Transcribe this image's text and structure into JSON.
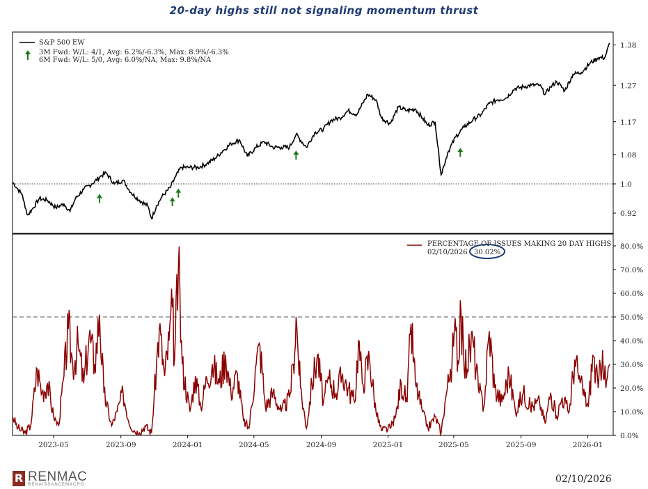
{
  "title": "20-day highs still not signaling momentum thrust",
  "footer_date": "02/10/2026",
  "logo": {
    "mark": "R",
    "name": "RENMAC",
    "sub": "RENAISSANCEMACRO"
  },
  "colors": {
    "price_line": "#000000",
    "breadth_line": "#8b0000",
    "arrow": "#1a7a1a",
    "title": "#1f3b73",
    "callout": "#1f3b73"
  },
  "chart_data": [
    {
      "type": "line",
      "panel": "top",
      "series": [
        {
          "name": "S&P 500 EW"
        }
      ],
      "x_ticks": [
        "2023-05",
        "2023-09",
        "2024-01",
        "2024-05",
        "2024-09",
        "2025-01",
        "2025-05",
        "2025-09",
        "2026-01"
      ],
      "y_ticks": [
        "0.92",
        "1.0",
        "1.08",
        "1.17",
        "1.27",
        "1.38"
      ],
      "y_tick_values": [
        0.92,
        1.0,
        1.08,
        1.17,
        1.27,
        1.38
      ],
      "ylim": [
        0.88,
        1.4
      ],
      "x_range": [
        "2023-02-15",
        "2026-02-10"
      ],
      "reference_line": 1.0,
      "annotations": [
        "3M Fwd: W/L: 4/1, Avg: 6.2%/-6.3%, Max: 8.9%/-6.3%",
        "6M Fwd: W/L: 5/0, Avg: 6.0%/NA, Max: 9.8%/NA"
      ],
      "legend_position": "top-left",
      "signal_dates": [
        "2023-07-24",
        "2023-12-04",
        "2023-12-15",
        "2024-07-17",
        "2025-05-13"
      ],
      "points": [
        [
          "2023-02-15",
          1.005
        ],
        [
          "2023-02-25",
          0.985
        ],
        [
          "2023-03-05",
          0.97
        ],
        [
          "2023-03-10",
          0.935
        ],
        [
          "2023-03-15",
          0.915
        ],
        [
          "2023-03-25",
          0.935
        ],
        [
          "2023-04-05",
          0.96
        ],
        [
          "2023-04-20",
          0.955
        ],
        [
          "2023-05-05",
          0.935
        ],
        [
          "2023-05-20",
          0.945
        ],
        [
          "2023-05-31",
          0.925
        ],
        [
          "2023-06-10",
          0.96
        ],
        [
          "2023-06-25",
          0.985
        ],
        [
          "2023-07-10",
          1.0
        ],
        [
          "2023-07-25",
          1.02
        ],
        [
          "2023-08-05",
          1.03
        ],
        [
          "2023-08-20",
          1.0
        ],
        [
          "2023-09-05",
          1.01
        ],
        [
          "2023-09-20",
          0.975
        ],
        [
          "2023-10-05",
          0.955
        ],
        [
          "2023-10-20",
          0.94
        ],
        [
          "2023-10-27",
          0.905
        ],
        [
          "2023-11-05",
          0.94
        ],
        [
          "2023-11-15",
          0.965
        ],
        [
          "2023-11-30",
          0.99
        ],
        [
          "2023-12-10",
          1.02
        ],
        [
          "2023-12-20",
          1.045
        ],
        [
          "2024-01-05",
          1.045
        ],
        [
          "2024-01-20",
          1.045
        ],
        [
          "2024-02-05",
          1.055
        ],
        [
          "2024-02-20",
          1.07
        ],
        [
          "2024-03-05",
          1.09
        ],
        [
          "2024-03-20",
          1.11
        ],
        [
          "2024-04-05",
          1.12
        ],
        [
          "2024-04-19",
          1.075
        ],
        [
          "2024-05-05",
          1.1
        ],
        [
          "2024-05-20",
          1.115
        ],
        [
          "2024-06-05",
          1.1
        ],
        [
          "2024-06-20",
          1.1
        ],
        [
          "2024-07-05",
          1.1
        ],
        [
          "2024-07-17",
          1.135
        ],
        [
          "2024-08-05",
          1.1
        ],
        [
          "2024-08-20",
          1.14
        ],
        [
          "2024-09-05",
          1.15
        ],
        [
          "2024-09-20",
          1.175
        ],
        [
          "2024-10-05",
          1.18
        ],
        [
          "2024-10-20",
          1.2
        ],
        [
          "2024-11-05",
          1.19
        ],
        [
          "2024-11-25",
          1.245
        ],
        [
          "2024-12-10",
          1.23
        ],
        [
          "2024-12-20",
          1.18
        ],
        [
          "2025-01-05",
          1.165
        ],
        [
          "2025-01-20",
          1.21
        ],
        [
          "2025-02-05",
          1.2
        ],
        [
          "2025-02-20",
          1.205
        ],
        [
          "2025-03-05",
          1.18
        ],
        [
          "2025-03-15",
          1.16
        ],
        [
          "2025-03-28",
          1.17
        ],
        [
          "2025-04-08",
          1.025
        ],
        [
          "2025-04-20",
          1.085
        ],
        [
          "2025-05-05",
          1.13
        ],
        [
          "2025-05-20",
          1.155
        ],
        [
          "2025-06-05",
          1.175
        ],
        [
          "2025-06-20",
          1.19
        ],
        [
          "2025-07-05",
          1.22
        ],
        [
          "2025-07-20",
          1.23
        ],
        [
          "2025-08-05",
          1.235
        ],
        [
          "2025-08-20",
          1.26
        ],
        [
          "2025-09-05",
          1.265
        ],
        [
          "2025-09-20",
          1.27
        ],
        [
          "2025-10-05",
          1.27
        ],
        [
          "2025-10-15",
          1.245
        ],
        [
          "2025-10-25",
          1.265
        ],
        [
          "2025-11-05",
          1.28
        ],
        [
          "2025-11-20",
          1.255
        ],
        [
          "2025-12-05",
          1.3
        ],
        [
          "2025-12-20",
          1.305
        ],
        [
          "2026-01-05",
          1.33
        ],
        [
          "2026-01-20",
          1.345
        ],
        [
          "2026-02-01",
          1.345
        ],
        [
          "2026-02-10",
          1.385
        ]
      ]
    },
    {
      "type": "line",
      "panel": "bottom",
      "series": [
        {
          "name": "PERCENTAGE OF ISSUES MAKING 20 DAY HIGHS",
          "last_value": "30.02%"
        }
      ],
      "legend_date": "02/10/2026",
      "x_ticks": [
        "2023-05",
        "2023-09",
        "2024-01",
        "2024-05",
        "2024-09",
        "2025-01",
        "2025-05",
        "2025-09",
        "2026-01"
      ],
      "y_ticks": [
        "0.0%",
        "10.0%",
        "20.0%",
        "30.0%",
        "40.0%",
        "50.0%",
        "60.0%",
        "70.0%",
        "80.0%"
      ],
      "y_tick_values": [
        0,
        10,
        20,
        30,
        40,
        50,
        60,
        70,
        80
      ],
      "ylim": [
        0,
        85
      ],
      "reference_line": 50,
      "legend_position": "top-right",
      "points": [
        [
          "2023-02-15",
          8
        ],
        [
          "2023-02-25",
          3
        ],
        [
          "2023-03-10",
          1
        ],
        [
          "2023-03-20",
          4
        ],
        [
          "2023-04-01",
          28
        ],
        [
          "2023-04-10",
          18
        ],
        [
          "2023-04-20",
          22
        ],
        [
          "2023-05-01",
          8
        ],
        [
          "2023-05-10",
          4
        ],
        [
          "2023-05-20",
          25
        ],
        [
          "2023-05-28",
          45
        ],
        [
          "2023-06-05",
          30
        ],
        [
          "2023-06-15",
          38
        ],
        [
          "2023-06-25",
          22
        ],
        [
          "2023-07-05",
          42
        ],
        [
          "2023-07-15",
          30
        ],
        [
          "2023-07-24",
          51
        ],
        [
          "2023-08-01",
          18
        ],
        [
          "2023-08-15",
          4
        ],
        [
          "2023-08-25",
          10
        ],
        [
          "2023-09-05",
          18
        ],
        [
          "2023-09-15",
          6
        ],
        [
          "2023-09-25",
          2
        ],
        [
          "2023-10-05",
          1
        ],
        [
          "2023-10-15",
          4
        ],
        [
          "2023-10-27",
          1
        ],
        [
          "2023-11-05",
          30
        ],
        [
          "2023-11-10",
          45
        ],
        [
          "2023-11-20",
          25
        ],
        [
          "2023-11-28",
          40
        ],
        [
          "2023-12-04",
          54
        ],
        [
          "2023-12-08",
          32
        ],
        [
          "2023-12-15",
          71
        ],
        [
          "2023-12-22",
          30
        ],
        [
          "2024-01-05",
          10
        ],
        [
          "2024-01-15",
          25
        ],
        [
          "2024-01-25",
          12
        ],
        [
          "2024-02-05",
          24
        ],
        [
          "2024-02-15",
          30
        ],
        [
          "2024-02-28",
          22
        ],
        [
          "2024-03-10",
          34
        ],
        [
          "2024-03-20",
          18
        ],
        [
          "2024-04-01",
          26
        ],
        [
          "2024-04-12",
          6
        ],
        [
          "2024-04-22",
          3
        ],
        [
          "2024-05-05",
          30
        ],
        [
          "2024-05-12",
          38
        ],
        [
          "2024-05-22",
          12
        ],
        [
          "2024-06-05",
          18
        ],
        [
          "2024-06-20",
          10
        ],
        [
          "2024-07-05",
          16
        ],
        [
          "2024-07-12",
          30
        ],
        [
          "2024-07-17",
          50
        ],
        [
          "2024-07-25",
          20
        ],
        [
          "2024-08-05",
          3
        ],
        [
          "2024-08-15",
          22
        ],
        [
          "2024-08-25",
          34
        ],
        [
          "2024-09-05",
          14
        ],
        [
          "2024-09-15",
          24
        ],
        [
          "2024-09-28",
          18
        ],
        [
          "2024-10-10",
          26
        ],
        [
          "2024-10-20",
          20
        ],
        [
          "2024-11-01",
          14
        ],
        [
          "2024-11-08",
          40
        ],
        [
          "2024-11-15",
          22
        ],
        [
          "2024-11-28",
          33
        ],
        [
          "2024-12-10",
          10
        ],
        [
          "2024-12-20",
          2
        ],
        [
          "2025-01-05",
          3
        ],
        [
          "2025-01-15",
          8
        ],
        [
          "2025-01-25",
          22
        ],
        [
          "2025-02-05",
          14
        ],
        [
          "2025-02-12",
          47
        ],
        [
          "2025-02-20",
          22
        ],
        [
          "2025-03-05",
          10
        ],
        [
          "2025-03-15",
          3
        ],
        [
          "2025-03-28",
          8
        ],
        [
          "2025-04-08",
          1
        ],
        [
          "2025-04-15",
          14
        ],
        [
          "2025-04-25",
          28
        ],
        [
          "2025-05-05",
          44
        ],
        [
          "2025-05-10",
          30
        ],
        [
          "2025-05-13",
          57
        ],
        [
          "2025-05-20",
          28
        ],
        [
          "2025-06-05",
          40
        ],
        [
          "2025-06-15",
          20
        ],
        [
          "2025-06-25",
          12
        ],
        [
          "2025-07-05",
          44
        ],
        [
          "2025-07-15",
          20
        ],
        [
          "2025-07-28",
          14
        ],
        [
          "2025-08-10",
          26
        ],
        [
          "2025-08-22",
          10
        ],
        [
          "2025-09-05",
          18
        ],
        [
          "2025-09-18",
          12
        ],
        [
          "2025-10-05",
          14
        ],
        [
          "2025-10-15",
          5
        ],
        [
          "2025-10-25",
          18
        ],
        [
          "2025-11-05",
          8
        ],
        [
          "2025-11-15",
          16
        ],
        [
          "2025-11-28",
          10
        ],
        [
          "2025-12-08",
          32
        ],
        [
          "2025-12-18",
          22
        ],
        [
          "2026-01-02",
          12
        ],
        [
          "2026-01-10",
          34
        ],
        [
          "2026-01-20",
          20
        ],
        [
          "2026-01-28",
          36
        ],
        [
          "2026-02-03",
          20
        ],
        [
          "2026-02-10",
          30
        ]
      ]
    }
  ]
}
